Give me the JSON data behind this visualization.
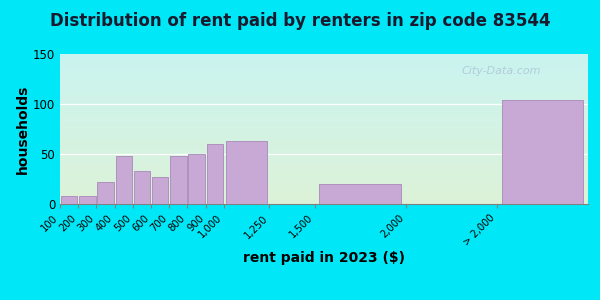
{
  "title": "Distribution of rent paid by renters in zip code 83544",
  "xlabel": "rent paid in 2023 ($)",
  "ylabel": "households",
  "bar_labels": [
    "100",
    "200",
    "300",
    "400",
    "500",
    "600",
    "700",
    "800",
    "900",
    "1,000",
    "1,250",
    "1,500",
    "2,000",
    "> 2,000"
  ],
  "bar_values": [
    8,
    8,
    22,
    48,
    33,
    27,
    48,
    50,
    60,
    63,
    0,
    20,
    0,
    104
  ],
  "bar_color": "#c8a8d4",
  "bar_edge_color": "#a888b8",
  "ylim": [
    0,
    150
  ],
  "yticks": [
    0,
    50,
    100,
    150
  ],
  "bg_outer": "#00e8f8",
  "bg_plot_top": "#ddf2d8",
  "bg_plot_bottom": "#caf4f0",
  "title_fontsize": 12,
  "axis_label_fontsize": 10,
  "watermark_text": "City-Data.com",
  "watermark_color": "#b0c8d8"
}
